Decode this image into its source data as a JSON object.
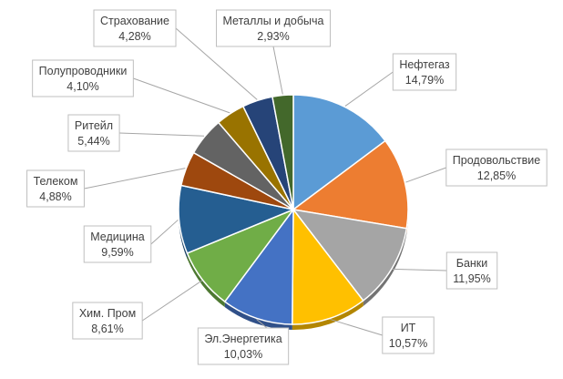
{
  "chart_data": {
    "type": "pie",
    "title": "",
    "legend": "none",
    "categories": [
      "Нефтегаз",
      "Продовольствие",
      "Банки",
      "ИТ",
      "Эл.Энергетика",
      "Хим. Пром",
      "Медицина",
      "Телеком",
      "Ритейл",
      "Полупроводники",
      "Страхование",
      "Металлы и добыча"
    ],
    "values": [
      14.79,
      12.85,
      11.95,
      10.57,
      10.03,
      8.61,
      9.59,
      4.88,
      5.44,
      4.1,
      4.28,
      2.93
    ],
    "value_labels": [
      "14,79%",
      "12,85%",
      "11,95%",
      "10,57%",
      "10,03%",
      "8,61%",
      "9,59%",
      "4,88%",
      "5,44%",
      "4,10%",
      "4,28%",
      "2,93%"
    ],
    "colors": [
      "#5b9bd5",
      "#ed7d31",
      "#a5a5a5",
      "#ffc000",
      "#4472c4",
      "#70ad47",
      "#255e91",
      "#9e480e",
      "#636363",
      "#997300",
      "#264478",
      "#43682b"
    ],
    "label_position": "outside-with-leader-lines"
  }
}
